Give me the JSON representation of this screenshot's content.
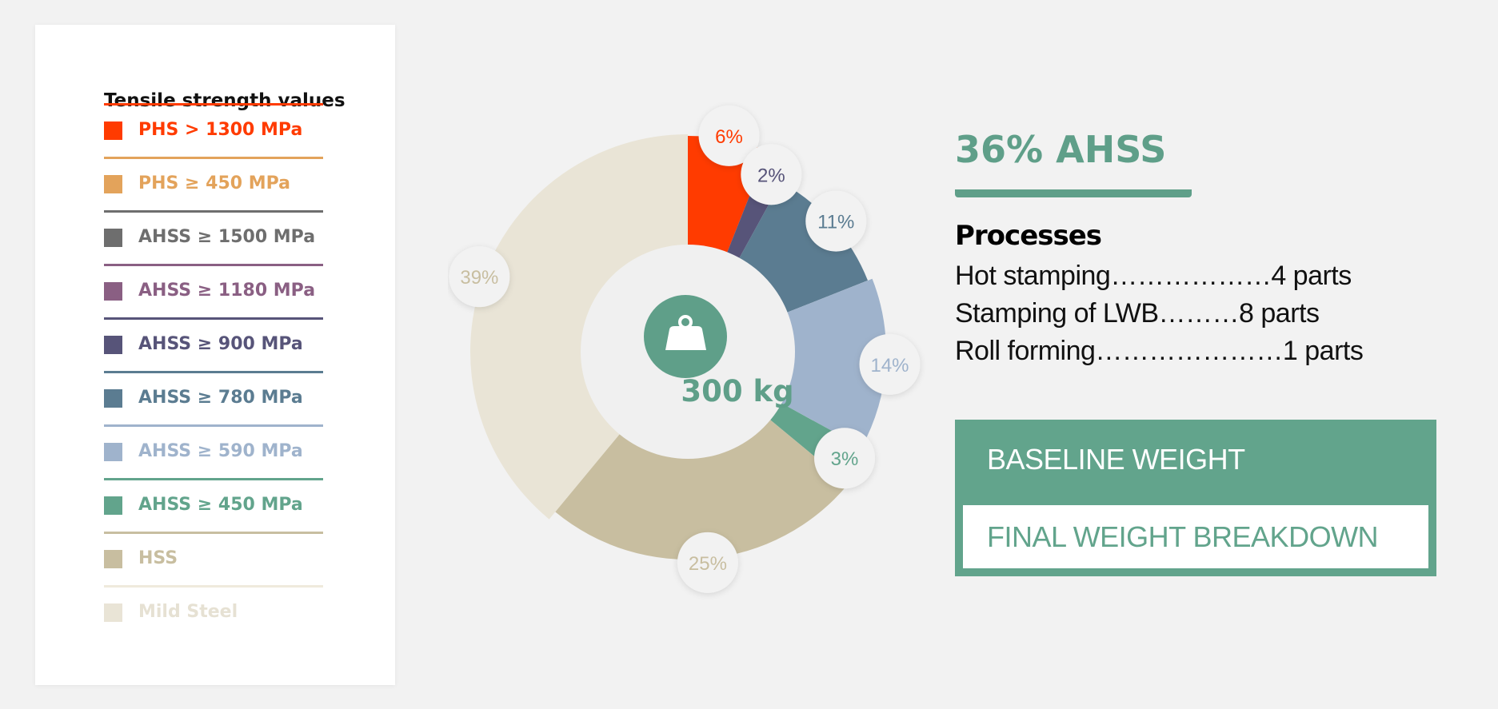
{
  "legend": {
    "title": "Tensile strength values",
    "items": [
      {
        "label": "PHS > 1300 MPa",
        "color": "#ff3b00",
        "line": "#ff3b00"
      },
      {
        "label": "PHS ≥ 450 MPa",
        "color": "#e3a35b",
        "line": "#e3a35b"
      },
      {
        "label": "AHSS ≥ 1500 MPa",
        "color": "#6e6e6e",
        "line": "#6e6e6e"
      },
      {
        "label": "AHSS ≥ 1180 MPa",
        "color": "#8a5f83",
        "line": "#8a5f83"
      },
      {
        "label": "AHSS ≥ 900 MPa",
        "color": "#575479",
        "line": "#575479"
      },
      {
        "label": "AHSS ≥ 780 MPa",
        "color": "#5b7c91",
        "line": "#5b7c91"
      },
      {
        "label": "AHSS ≥ 590 MPa",
        "color": "#9fb3cc",
        "line": "#9fb3cc"
      },
      {
        "label": "AHSS ≥ 450 MPa",
        "color": "#62a48c",
        "line": "#62a48c"
      },
      {
        "label": "HSS",
        "color": "#c8bea0",
        "line": "#c8bea0"
      },
      {
        "label": "Mild Steel",
        "color": "#e9e4d6",
        "line": "#efeadc"
      }
    ]
  },
  "chart_data": {
    "type": "pie",
    "variant": "donut",
    "center_label": "300 kg",
    "center_icon": "weight-icon",
    "slices": [
      {
        "name": "PHS > 1300 MPa",
        "value": 6,
        "label": "6%",
        "color": "#ff3b00",
        "label_color": "#ff3b00"
      },
      {
        "name": "AHSS ≥ 900 MPa",
        "value": 2,
        "label": "2%",
        "color": "#575479",
        "label_color": "#575479"
      },
      {
        "name": "AHSS ≥ 780 MPa",
        "value": 11,
        "label": "11%",
        "color": "#5b7c91",
        "label_color": "#5b7c91"
      },
      {
        "name": "AHSS ≥ 590 MPa",
        "value": 14,
        "label": "14%",
        "color": "#9fb3cc",
        "label_color": "#9fb3cc"
      },
      {
        "name": "AHSS ≥ 450 MPa",
        "value": 3,
        "label": "3%",
        "color": "#62a48c",
        "label_color": "#62a48c"
      },
      {
        "name": "HSS",
        "value": 25,
        "label": "25%",
        "color": "#c8bea0",
        "label_color": "#c8bea0"
      },
      {
        "name": "Mild Steel",
        "value": 39,
        "label": "39%",
        "color": "#e9e4d6",
        "label_color": "#c8bea0"
      }
    ]
  },
  "summary": {
    "headline": "36% AHSS",
    "processes_title": "Processes",
    "processes": [
      "Hot stamping………………4 parts",
      "Stamping of LWB………8 parts",
      "Roll forming…………………1 parts"
    ]
  },
  "buttons": {
    "baseline": "BASELINE WEIGHT BREAKDOWN",
    "final": "FINAL WEIGHT BREAKDOWN"
  },
  "colors": {
    "accent": "#62a48c",
    "background": "#f2f2f2"
  }
}
